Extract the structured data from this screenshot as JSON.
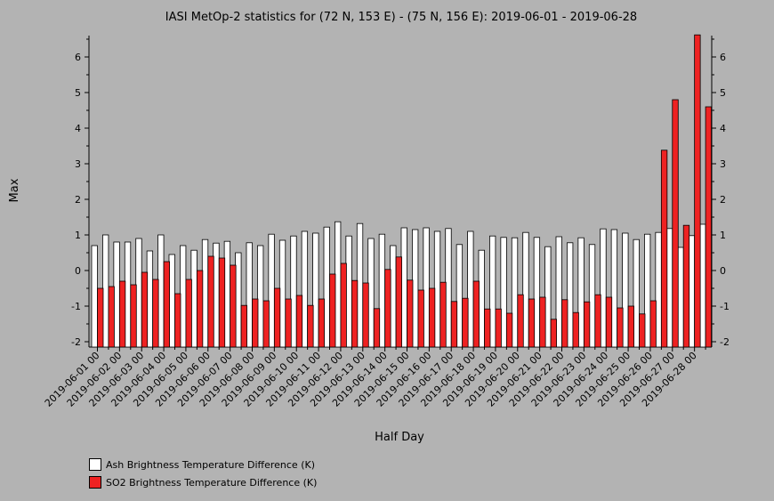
{
  "chart_data": {
    "type": "bar",
    "title": "IASI MetOp-2 statistics for (72 N, 153 E) - (75 N, 156 E): 2019-06-01 - 2019-06-28",
    "xlabel": "Half Day",
    "ylabel": "Max",
    "ylim": [
      -2.15,
      6.6
    ],
    "yticks": [
      -2,
      -1,
      0,
      1,
      2,
      3,
      4,
      5,
      6
    ],
    "x_tick_labels": [
      "2019-06-01 00",
      "2019-06-02 00",
      "2019-06-03 00",
      "2019-06-04 00",
      "2019-06-05 00",
      "2019-06-06 00",
      "2019-06-07 00",
      "2019-06-08 00",
      "2019-06-09 00",
      "2019-06-10 00",
      "2019-06-11 00",
      "2019-06-12 00",
      "2019-06-13 00",
      "2019-06-14 00",
      "2019-06-15 00",
      "2019-06-16 00",
      "2019-06-17 00",
      "2019-06-18 00",
      "2019-06-19 00",
      "2019-06-20 00",
      "2019-06-21 00",
      "2019-06-22 00",
      "2019-06-23 00",
      "2019-06-24 00",
      "2019-06-25 00",
      "2019-06-26 00",
      "2019-06-27 00",
      "2019-06-28 00"
    ],
    "series": [
      {
        "name": "Ash Brightness Temperature Difference (K)",
        "color": "#ffffff",
        "values": [
          0.7,
          1.0,
          0.8,
          0.8,
          0.9,
          0.55,
          1.0,
          0.45,
          0.7,
          0.57,
          0.87,
          0.77,
          0.82,
          0.5,
          0.78,
          0.7,
          1.02,
          0.85,
          0.97,
          1.1,
          1.05,
          1.22,
          1.37,
          0.97,
          1.32,
          0.9,
          1.02,
          0.7,
          1.2,
          1.15,
          1.2,
          1.1,
          1.18,
          0.73,
          1.1,
          0.57,
          0.97,
          0.93,
          0.92,
          1.07,
          0.93,
          0.67,
          0.95,
          0.78,
          0.92,
          0.73,
          1.17,
          1.15,
          1.05,
          0.87,
          1.02,
          1.07,
          1.18,
          0.65,
          0.98,
          1.3
        ]
      },
      {
        "name": "SO2 Brightness Temperature Difference (K)",
        "color": "#ee2222",
        "values": [
          -0.5,
          -0.45,
          -0.3,
          -0.4,
          -0.05,
          -0.25,
          0.25,
          -0.65,
          -0.25,
          0.0,
          0.4,
          0.35,
          0.15,
          -0.98,
          -0.8,
          -0.85,
          -0.5,
          -0.8,
          -0.7,
          -0.98,
          -0.8,
          -0.1,
          0.2,
          -0.28,
          -0.35,
          -1.07,
          0.03,
          0.38,
          -0.27,
          -0.55,
          -0.5,
          -0.33,
          -0.87,
          -0.78,
          -0.3,
          -1.08,
          -1.08,
          -1.2,
          -0.68,
          -0.8,
          -0.75,
          -1.37,
          -0.82,
          -1.18,
          -0.88,
          -0.68,
          -0.75,
          -1.05,
          -1.0,
          -1.22,
          -0.85,
          3.38,
          4.8,
          1.27,
          6.62,
          4.6
        ]
      }
    ],
    "legend_position": "bottom-left"
  }
}
